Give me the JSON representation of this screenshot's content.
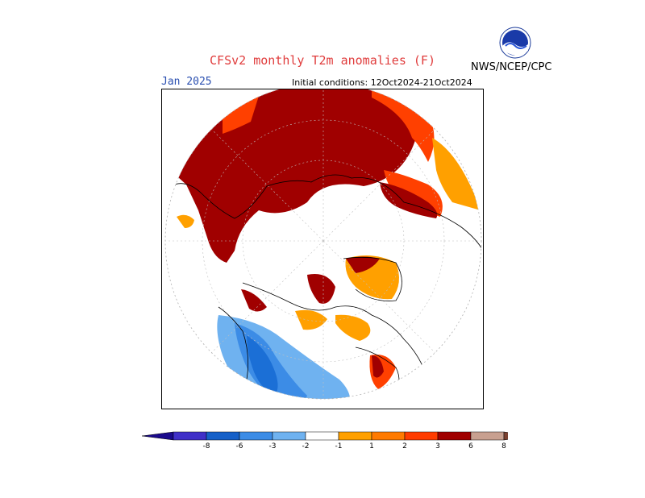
{
  "title": "CFSv2 monthly T2m anomalies (F)",
  "agency": "NWS/NCEP/CPC",
  "logo_text": "NOAA",
  "valid_month": "Jan 2025",
  "initial_conditions": "Initial conditions: 12Oct2024-21Oct2024",
  "colors": {
    "title": "#e03c3c",
    "month": "#2a4fb0",
    "dark_red": "#a00000",
    "red": "#ff4000",
    "orange_red": "#ff7a00",
    "orange": "#ffa000",
    "light_blue": "#6fb2f0",
    "medium_blue": "#3c8ce6",
    "blue": "#1b6fd6",
    "dark_blue": "#1550b8"
  },
  "colorbar": {
    "labels": [
      "-8",
      "-6",
      "-3",
      "-2",
      "-1",
      "1",
      "2",
      "3",
      "6",
      "8"
    ],
    "left_arrow_color": "#1a0a8c",
    "right_arrow_color": "#7a4030",
    "bins": [
      "#4030c8",
      "#1660c8",
      "#3c8ce6",
      "#6fb2f0",
      "#ffffff",
      "#ffa000",
      "#ff7a00",
      "#ff3c00",
      "#a00000",
      "#c8a090"
    ]
  }
}
